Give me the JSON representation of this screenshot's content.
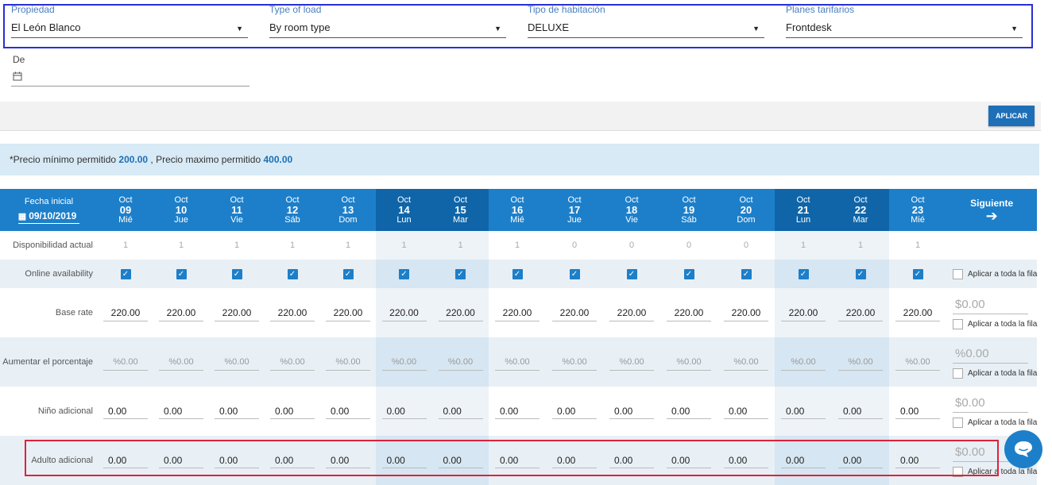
{
  "filters": {
    "propiedad": {
      "label": "Propiedad",
      "value": "El León Blanco"
    },
    "type_of_load": {
      "label": "Type of load",
      "value": "By room type"
    },
    "tipo_habitacion": {
      "label": "Tipo de habitación",
      "value": "DELUXE"
    },
    "planes": {
      "label": "Planes tarifarios",
      "value": "Frontdesk"
    },
    "de": {
      "label": "De",
      "value": ""
    }
  },
  "apply_button": "APLICAR",
  "info": {
    "prefix": "*Precio mínimo permitido ",
    "min": "200.00",
    "middle": " , Precio maximo permitido ",
    "max": "400.00"
  },
  "grid": {
    "start_label": "Fecha inicial",
    "start_date": "09/10/2019",
    "next_label": "Siguiente",
    "days": [
      {
        "mon": "Oct",
        "day": "09",
        "dow": "Mié"
      },
      {
        "mon": "Oct",
        "day": "10",
        "dow": "Jue"
      },
      {
        "mon": "Oct",
        "day": "11",
        "dow": "Vie"
      },
      {
        "mon": "Oct",
        "day": "12",
        "dow": "Sáb"
      },
      {
        "mon": "Oct",
        "day": "13",
        "dow": "Dom"
      },
      {
        "mon": "Oct",
        "day": "14",
        "dow": "Lun"
      },
      {
        "mon": "Oct",
        "day": "15",
        "dow": "Mar"
      },
      {
        "mon": "Oct",
        "day": "16",
        "dow": "Mié"
      },
      {
        "mon": "Oct",
        "day": "17",
        "dow": "Jue"
      },
      {
        "mon": "Oct",
        "day": "18",
        "dow": "Vie"
      },
      {
        "mon": "Oct",
        "day": "19",
        "dow": "Sáb"
      },
      {
        "mon": "Oct",
        "day": "20",
        "dow": "Dom"
      },
      {
        "mon": "Oct",
        "day": "21",
        "dow": "Lun"
      },
      {
        "mon": "Oct",
        "day": "22",
        "dow": "Mar"
      },
      {
        "mon": "Oct",
        "day": "23",
        "dow": "Mié"
      }
    ],
    "highlight_cols": [
      5,
      6,
      12,
      13
    ],
    "rows": {
      "disponibilidad": {
        "label": "Disponibilidad actual",
        "values": [
          "1",
          "1",
          "1",
          "1",
          "1",
          "1",
          "1",
          "1",
          "0",
          "0",
          "0",
          "0",
          "1",
          "1",
          "1"
        ]
      },
      "online": {
        "label": "Online availability",
        "checked": [
          true,
          true,
          true,
          true,
          true,
          true,
          true,
          true,
          true,
          true,
          true,
          true,
          true,
          true,
          true
        ]
      },
      "base": {
        "label": "Base rate",
        "values": [
          "220.00",
          "220.00",
          "220.00",
          "220.00",
          "220.00",
          "220.00",
          "220.00",
          "220.00",
          "220.00",
          "220.00",
          "220.00",
          "220.00",
          "220.00",
          "220.00",
          "220.00"
        ],
        "side": "$0.00"
      },
      "aumentar": {
        "label": "Aumentar el porcentaje",
        "values": [
          "%0.00",
          "%0.00",
          "%0.00",
          "%0.00",
          "%0.00",
          "%0.00",
          "%0.00",
          "%0.00",
          "%0.00",
          "%0.00",
          "%0.00",
          "%0.00",
          "%0.00",
          "%0.00",
          "%0.00"
        ],
        "side": "%0.00"
      },
      "nino": {
        "label": "Niño adicional",
        "values": [
          "0.00",
          "0.00",
          "0.00",
          "0.00",
          "0.00",
          "0.00",
          "0.00",
          "0.00",
          "0.00",
          "0.00",
          "0.00",
          "0.00",
          "0.00",
          "0.00",
          "0.00"
        ],
        "side": "$0.00"
      },
      "adulto": {
        "label": "Adulto adicional",
        "values": [
          "0.00",
          "0.00",
          "0.00",
          "0.00",
          "0.00",
          "0.00",
          "0.00",
          "0.00",
          "0.00",
          "0.00",
          "0.00",
          "0.00",
          "0.00",
          "0.00",
          "0.00"
        ],
        "side": "$0.00"
      }
    },
    "apply_row_label": "Aplicar a toda la fila"
  },
  "colors": {
    "accent": "#1d7fc9",
    "highlight_box": "#2a2fd6",
    "error_box": "#e0213a"
  }
}
